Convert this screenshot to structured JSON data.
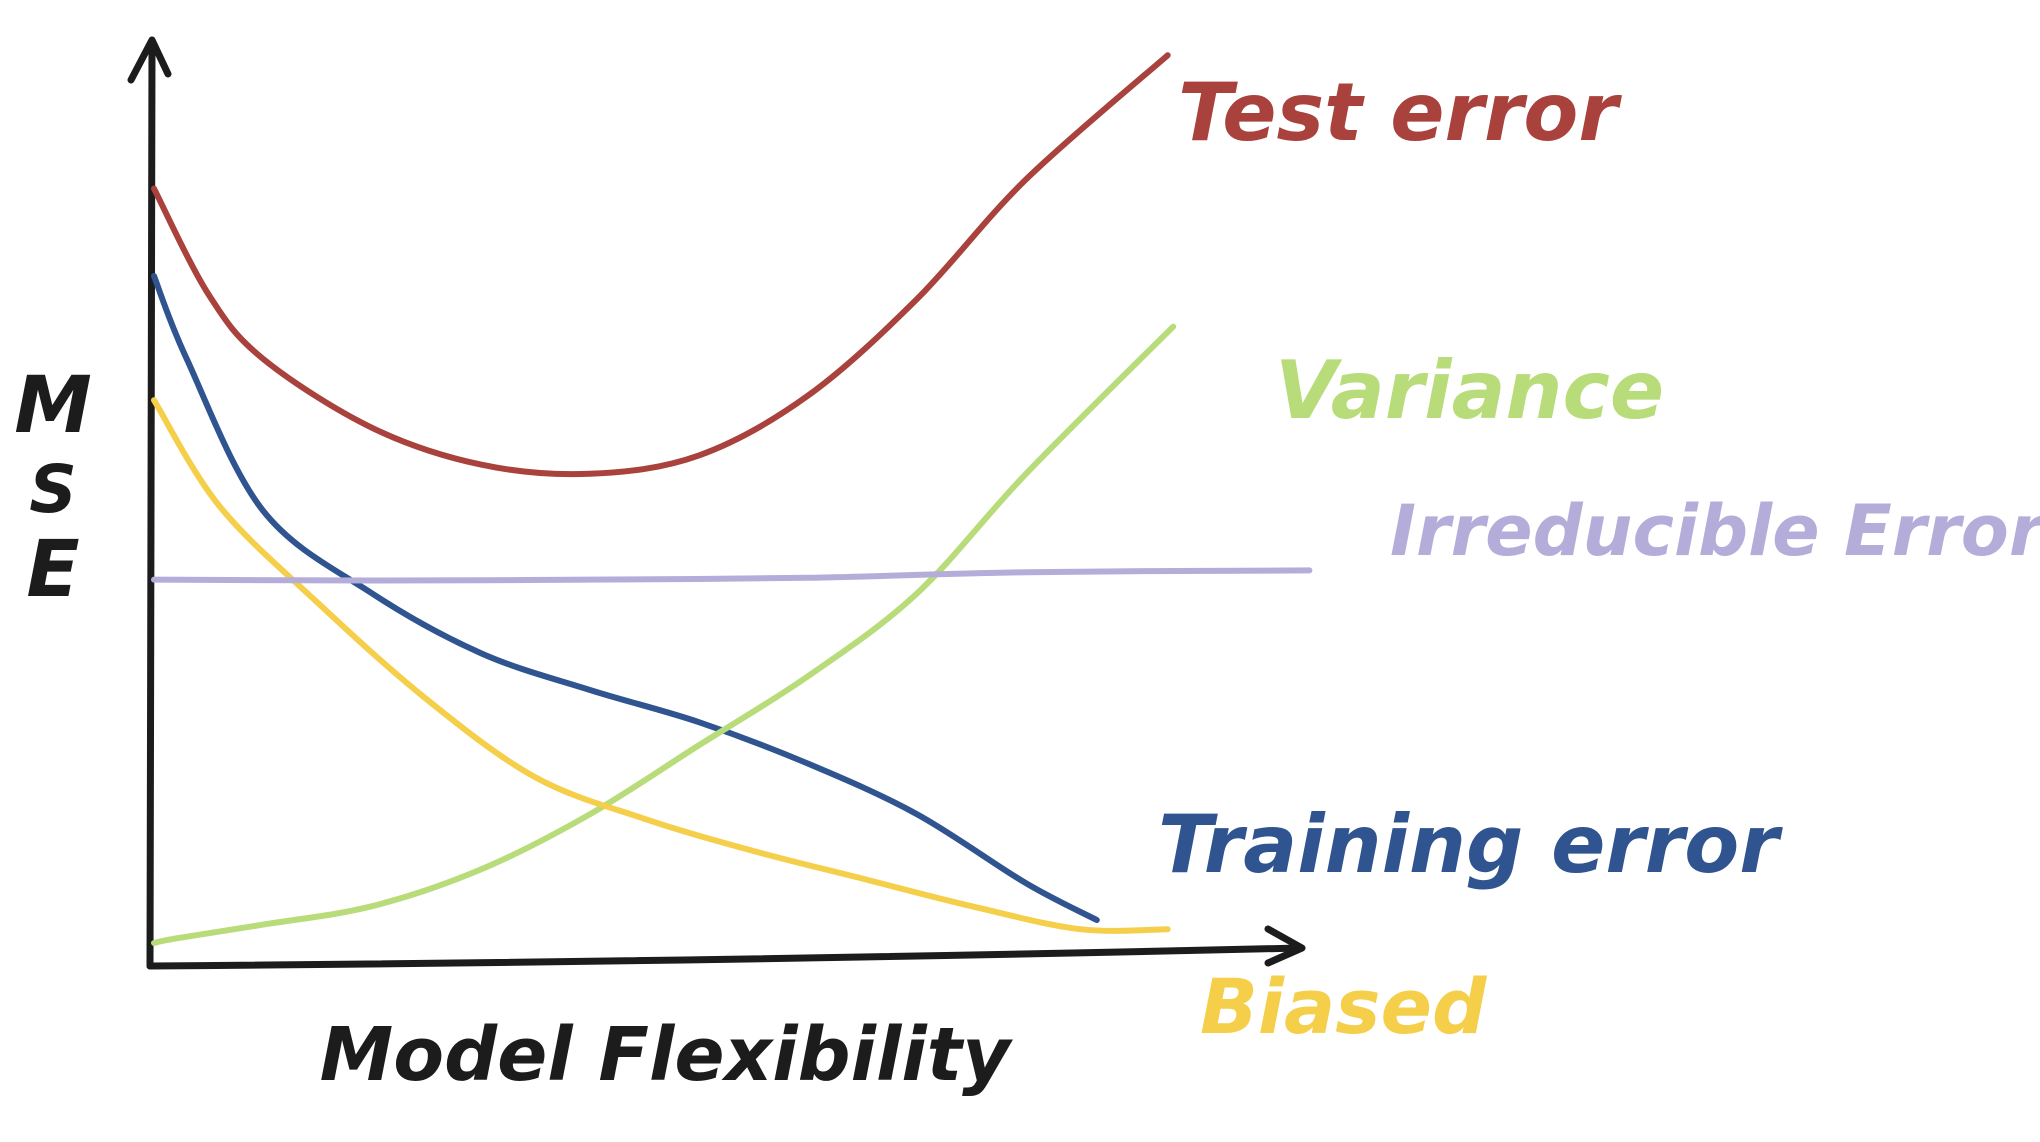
{
  "chart_data": {
    "type": "line",
    "title": "",
    "xlabel": "Model Flexibility",
    "ylabel": "MSE",
    "ylabel_letters": [
      "M",
      "S",
      "E"
    ],
    "xlim": [
      0,
      10
    ],
    "ylim": [
      0,
      10
    ],
    "grid": false,
    "axis_color": "#1c1c1c",
    "series": [
      {
        "name": "Test error",
        "color": "#a9423c",
        "x": [
          0,
          0.5,
          1,
          2,
          3,
          4,
          5,
          6,
          7,
          8,
          9.3
        ],
        "y": [
          8.45,
          7.3,
          6.6,
          5.85,
          5.45,
          5.35,
          5.55,
          6.2,
          7.25,
          8.55,
          9.9
        ]
      },
      {
        "name": "Training error",
        "color": "#2f5490",
        "x": [
          0,
          0.3,
          1,
          2,
          3,
          4,
          5,
          6,
          7,
          8,
          8.65
        ],
        "y": [
          7.5,
          6.6,
          4.95,
          4.05,
          3.4,
          3.0,
          2.65,
          2.2,
          1.65,
          0.9,
          0.5
        ]
      },
      {
        "name": "Variance",
        "color": "#b8dc7a",
        "x": [
          0,
          0.2,
          1,
          2,
          3,
          4,
          5,
          6,
          7,
          8,
          9.35
        ],
        "y": [
          0.25,
          0.3,
          0.45,
          0.65,
          1.05,
          1.65,
          2.4,
          3.15,
          4.05,
          5.35,
          6.95
        ]
      },
      {
        "name": "Biased",
        "color": "#f5cf4a",
        "x": [
          0,
          0.6,
          1.5,
          2.5,
          3.5,
          4.5,
          5.5,
          6.5,
          7.5,
          8.5,
          9.3
        ],
        "y": [
          6.15,
          5.0,
          3.95,
          2.9,
          2.05,
          1.6,
          1.25,
          0.95,
          0.65,
          0.4,
          0.4
        ]
      },
      {
        "name": "Irreducible Error",
        "color": "#b5add9",
        "x": [
          0,
          2,
          4,
          6,
          8,
          10.6
        ],
        "y": [
          4.2,
          4.19,
          4.2,
          4.22,
          4.28,
          4.3
        ]
      }
    ]
  }
}
